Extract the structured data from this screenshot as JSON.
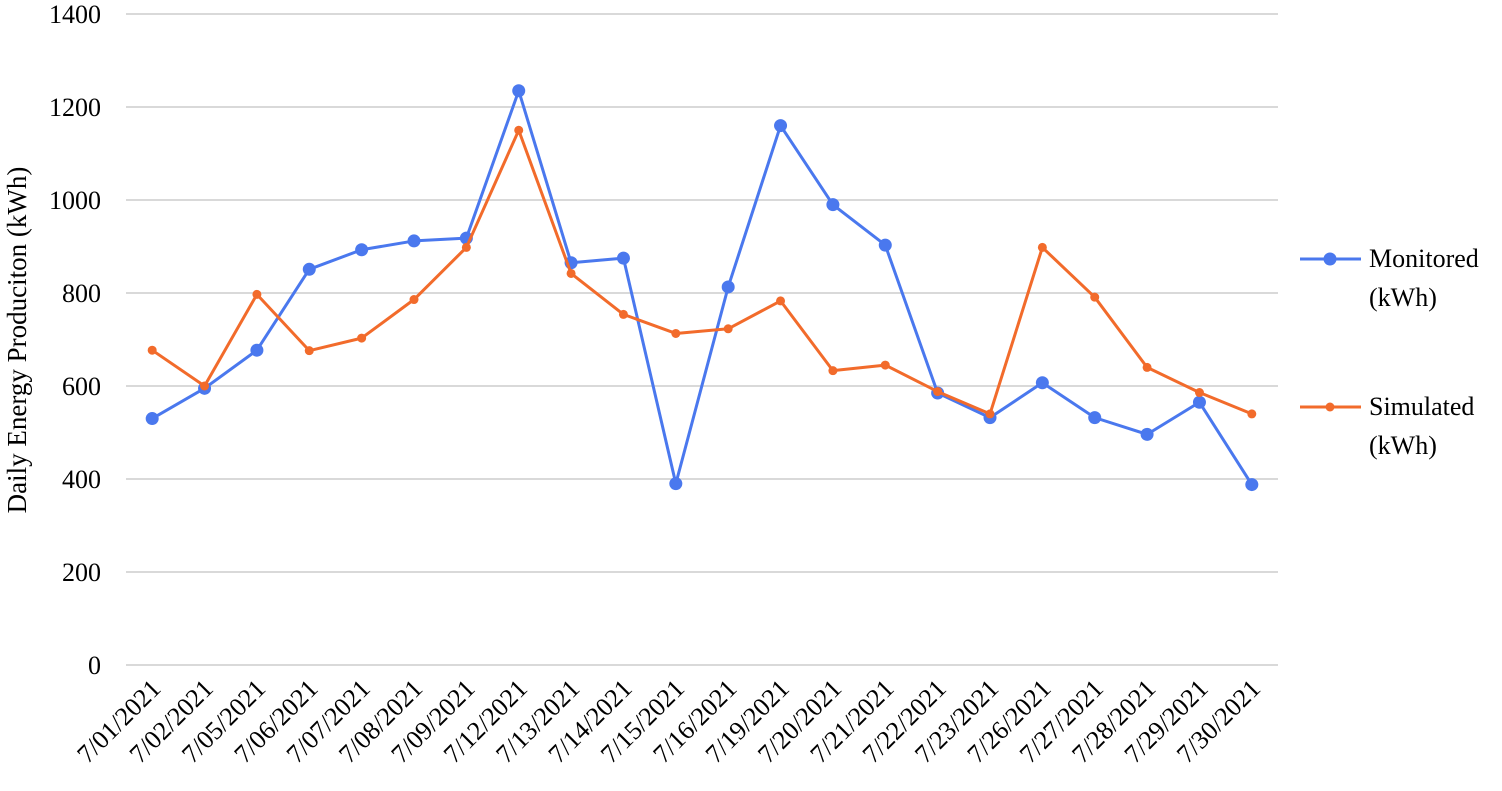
{
  "chart_data": {
    "type": "line",
    "title": "",
    "xlabel": "",
    "ylabel": "Daily Energy Produciton (kWh)",
    "ylim": [
      0,
      1400
    ],
    "yticks": [
      0,
      200,
      400,
      600,
      800,
      1000,
      1200,
      1400
    ],
    "grid": "horizontal",
    "legend_position": "right",
    "categories": [
      "7/01/2021",
      "7/02/2021",
      "7/05/2021",
      "7/06/2021",
      "7/07/2021",
      "7/08/2021",
      "7/09/2021",
      "7/12/2021",
      "7/13/2021",
      "7/14/2021",
      "7/15/2021",
      "7/16/2021",
      "7/19/2021",
      "7/20/2021",
      "7/21/2021",
      "7/22/2021",
      "7/23/2021",
      "7/26/2021",
      "7/27/2021",
      "7/28/2021",
      "7/29/2021",
      "7/30/2021"
    ],
    "series": [
      {
        "name": "Monitored (kWh)",
        "legend_lines": [
          "Monitored",
          "(kWh)"
        ],
        "color": "#4A78EE",
        "values": [
          530,
          595,
          677,
          851,
          893,
          912,
          918,
          1235,
          865,
          875,
          390,
          813,
          1160,
          990,
          903,
          585,
          532,
          607,
          532,
          496,
          565,
          388
        ]
      },
      {
        "name": "Simulated (kWh)",
        "legend_lines": [
          "Simulated",
          "(kWh)"
        ],
        "color": "#F26B2B",
        "values": [
          677,
          600,
          797,
          676,
          703,
          786,
          898,
          1150,
          842,
          754,
          713,
          723,
          783,
          633,
          645,
          588,
          540,
          898,
          791,
          640,
          586,
          540
        ]
      }
    ]
  }
}
